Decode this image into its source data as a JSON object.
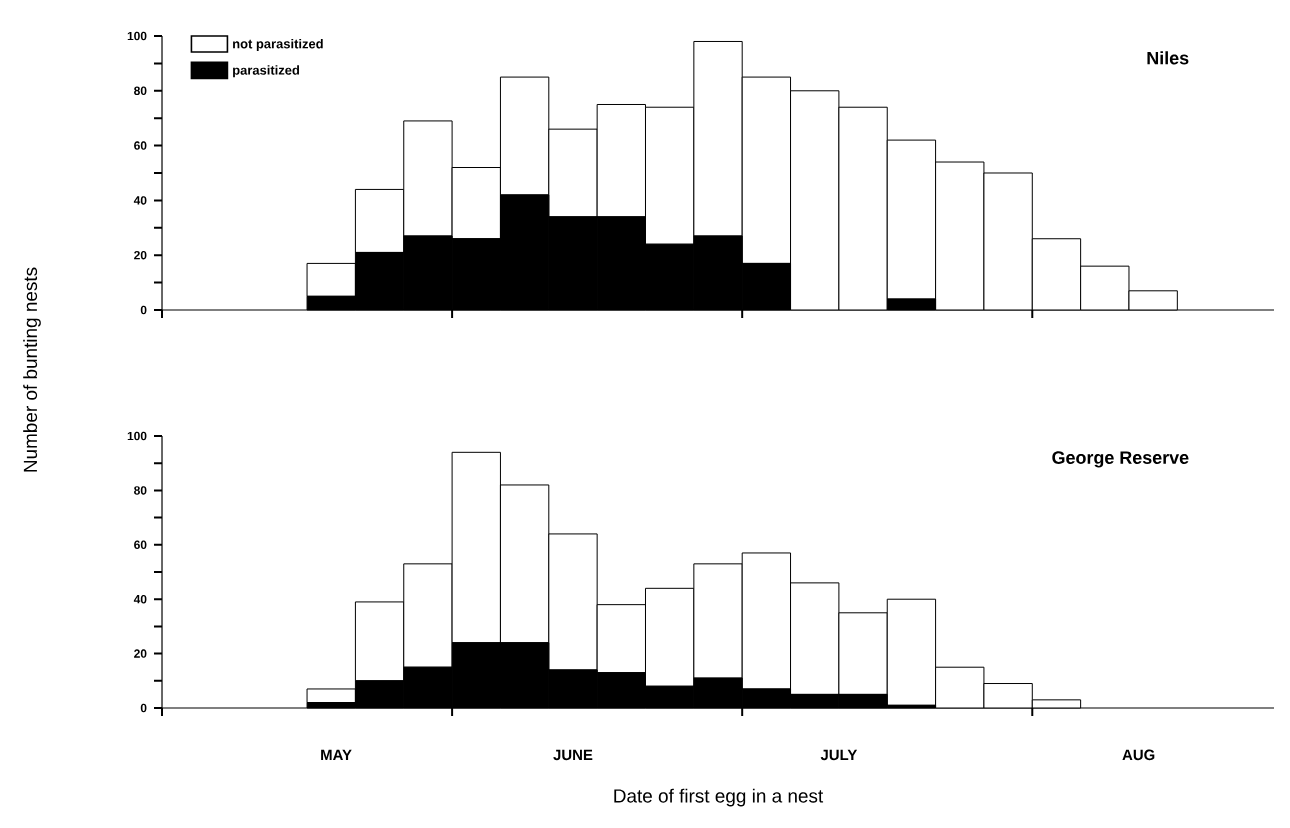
{
  "chart_data": [
    {
      "type": "bar",
      "stacked": true,
      "title": "Niles",
      "ylabel": "Number of bunting nests",
      "categories": [
        null,
        null,
        null,
        null,
        null,
        null,
        null,
        null,
        null,
        null,
        null,
        null,
        null,
        null,
        null,
        null,
        null,
        null,
        null,
        null,
        null,
        null,
        null
      ],
      "series": [
        {
          "name": "parasitized",
          "color": "#000000",
          "values": [
            0,
            0,
            0,
            5,
            21,
            27,
            26,
            42,
            34,
            34,
            24,
            27,
            17,
            0,
            0,
            4,
            0,
            0,
            0,
            0,
            0,
            0,
            0
          ]
        },
        {
          "name": "not parasitized",
          "color": "#ffffff",
          "values": [
            0,
            0,
            0,
            12,
            23,
            42,
            26,
            43,
            32,
            41,
            50,
            71,
            68,
            80,
            74,
            58,
            54,
            50,
            26,
            16,
            7,
            0,
            0
          ]
        }
      ],
      "ylim": [
        0,
        100
      ],
      "yticks": [
        0,
        {
          "value": 10,
          "label": null
        },
        20,
        {
          "value": 30,
          "label": null
        },
        40,
        {
          "value": 50,
          "label": null
        },
        60,
        {
          "value": 70,
          "label": null
        },
        80,
        {
          "value": 90,
          "label": null
        },
        100
      ],
      "tick_labels": "y",
      "legend": "top left",
      "grid": false
    },
    {
      "type": "bar",
      "stacked": true,
      "title": "George Reserve",
      "xlabel": "Date of first egg in a nest",
      "categories": [
        null,
        null,
        null,
        null,
        null,
        null,
        null,
        null,
        null,
        null,
        null,
        null,
        null,
        null,
        null,
        null,
        null,
        null,
        null,
        null,
        null,
        null,
        null
      ],
      "series": [
        {
          "color": "#000000",
          "values": [
            0,
            0,
            0,
            2,
            10,
            15,
            24,
            24,
            14,
            13,
            8,
            11,
            7,
            5,
            5,
            1,
            0,
            0,
            0,
            0,
            0,
            0,
            0
          ]
        },
        {
          "color": "#ffffff",
          "values": [
            0,
            0,
            0,
            5,
            29,
            38,
            70,
            58,
            50,
            25,
            36,
            42,
            50,
            41,
            30,
            39,
            15,
            9,
            3,
            0,
            0,
            0,
            0
          ]
        }
      ],
      "annotations": [
        "MAY",
        "JUNE",
        "JULY",
        "AUG"
      ],
      "ylim": [
        0,
        100
      ],
      "yticks": [
        0,
        {
          "value": 10,
          "label": null
        },
        20,
        {
          "value": 30,
          "label": null
        },
        40,
        {
          "value": 50,
          "label": null
        },
        60,
        {
          "value": 70,
          "label": null
        },
        80,
        {
          "value": 90,
          "label": null
        },
        100
      ],
      "grid": false
    }
  ]
}
